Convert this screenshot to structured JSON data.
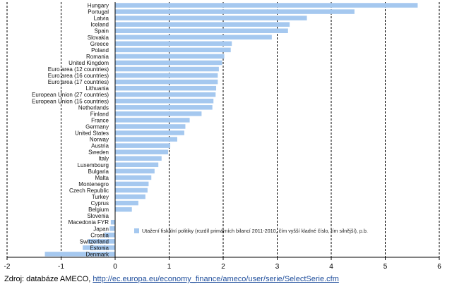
{
  "chart_data": {
    "type": "bar",
    "orientation": "horizontal",
    "categories": [
      "Hungary",
      "Portugal",
      "Latvia",
      "Iceland",
      "Spain",
      "Slovakia",
      "Greece",
      "Poland",
      "Romania",
      "United Kingdom",
      "Euro area (12 countries)",
      "Euro area (16 countries)",
      "Euro area (17 countries)",
      "Lithuania",
      "European Union (27 countries)",
      "European Union (15 countries)",
      "Netherlands",
      "Finland",
      "France",
      "Germany",
      "United States",
      "Norway",
      "Austria",
      "Sweden",
      "Italy",
      "Luxembourg",
      "Bulgaria",
      "Malta",
      "Montenegro",
      "Czech Republic",
      "Turkey",
      "Cyprus",
      "Belgium",
      "Slovenia",
      "Macedonia FYR",
      "Japan",
      "Croatia",
      "Switzerland",
      "Estonia",
      "Denmark"
    ],
    "values": [
      5.6,
      4.43,
      3.55,
      3.23,
      3.2,
      2.9,
      2.16,
      2.14,
      2.02,
      1.98,
      1.92,
      1.9,
      1.9,
      1.87,
      1.86,
      1.82,
      1.8,
      1.6,
      1.38,
      1.3,
      1.28,
      1.15,
      1.02,
      0.98,
      0.86,
      0.8,
      0.73,
      0.67,
      0.62,
      0.6,
      0.56,
      0.43,
      0.31,
      0.0,
      -0.08,
      -0.1,
      -0.2,
      -0.5,
      -0.6,
      -1.3
    ],
    "series_name": "Utažení fiskální politiky (rozdíl  primárních bilancí 2011-2010, čím  vyšší kladné číslo, tím silnější), p.b.",
    "xlim": [
      -2,
      6
    ],
    "xticks": [
      -2,
      -1,
      0,
      1,
      2,
      3,
      4,
      5,
      6
    ],
    "grid": "vertical dashed",
    "legend_position": "right",
    "bar_color": "#a5c8ef"
  },
  "source": {
    "label": "Zdroj: databáze AMECO, ",
    "link": "http://ec.europa.eu/economy_finance/ameco/user/serie/SelectSerie.cfm"
  }
}
